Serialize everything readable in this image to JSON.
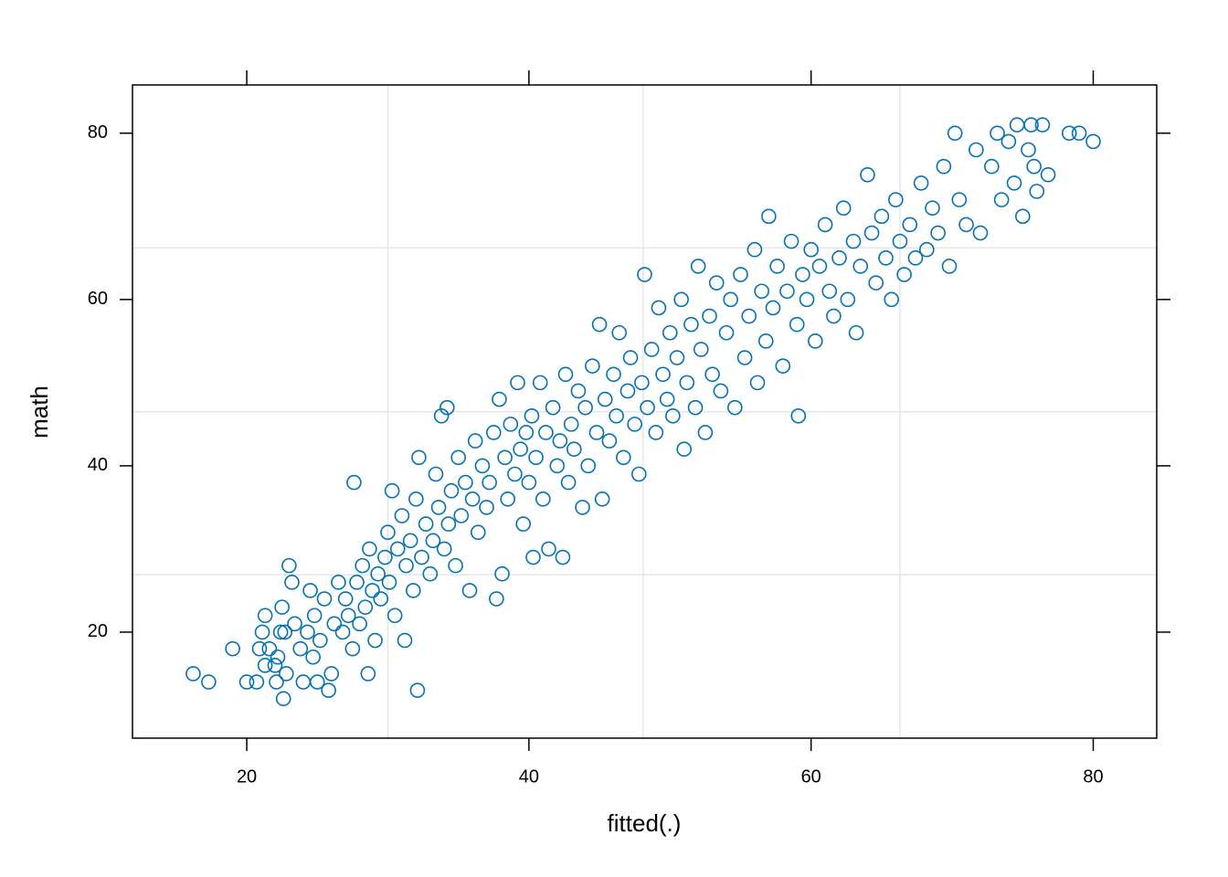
{
  "chart_data": {
    "type": "scatter",
    "x_label": "fitted(.)",
    "y_label": "math",
    "color": "#0072b2",
    "xlim": [
      11.9,
      84.5
    ],
    "ylim": [
      7.25,
      85.8
    ],
    "xticks": [
      20,
      40,
      60,
      80
    ],
    "yticks": [
      20,
      40,
      60,
      80
    ],
    "grid": true,
    "xgrid": [
      30,
      48.1,
      66.3
    ],
    "ygrid": [
      26.9,
      46.5,
      66.2
    ],
    "x": [
      16.2,
      17.3,
      19,
      20,
      20.7,
      20.9,
      21.1,
      21.3,
      21.3,
      21.6,
      22,
      22.1,
      22.2,
      22.4,
      22.5,
      22.6,
      22.7,
      22.8,
      23,
      23.2,
      23.4,
      23.8,
      24,
      24.3,
      24.5,
      24.7,
      24.8,
      25,
      25.2,
      25.5,
      25.8,
      26,
      26.2,
      26.5,
      26.8,
      27,
      27.2,
      27.5,
      27.6,
      27.8,
      28,
      28.2,
      28.4,
      28.6,
      28.7,
      28.9,
      29.1,
      29.3,
      29.5,
      29.8,
      30,
      30.1,
      30.3,
      30.5,
      30.7,
      31,
      31.2,
      31.3,
      31.6,
      31.8,
      32,
      32.1,
      32.2,
      32.4,
      32.7,
      33,
      33.2,
      33.4,
      33.6,
      33.8,
      34,
      34.2,
      34.3,
      34.5,
      34.8,
      35,
      35.2,
      35.5,
      35.8,
      36,
      36.2,
      36.4,
      36.7,
      37,
      37.2,
      37.5,
      37.7,
      37.9,
      38.1,
      38.3,
      38.5,
      38.7,
      39,
      39.2,
      39.4,
      39.6,
      39.8,
      40,
      40.2,
      40.3,
      40.5,
      40.8,
      41,
      41.2,
      41.4,
      41.7,
      42,
      42.2,
      42.4,
      42.6,
      42.8,
      43,
      43.2,
      43.5,
      43.8,
      44,
      44.2,
      44.5,
      44.8,
      45,
      45.2,
      45.4,
      45.7,
      46,
      46.2,
      46.4,
      46.7,
      47,
      47.2,
      47.5,
      47.8,
      48,
      48.2,
      48.4,
      48.7,
      49,
      49.2,
      49.5,
      49.8,
      50,
      50.2,
      50.5,
      50.8,
      51,
      51.2,
      51.5,
      51.8,
      52,
      52.2,
      52.5,
      52.8,
      53,
      53.3,
      53.6,
      54,
      54.3,
      54.6,
      55,
      55.3,
      55.6,
      56,
      56.2,
      56.5,
      56.8,
      57,
      57.3,
      57.6,
      58,
      58.3,
      58.6,
      59,
      59.1,
      59.4,
      59.7,
      60,
      60.3,
      60.6,
      61,
      61.3,
      61.6,
      62,
      62.3,
      62.6,
      63,
      63.2,
      63.5,
      64,
      64.3,
      64.6,
      65,
      65.3,
      65.7,
      66,
      66.3,
      66.6,
      67,
      67.4,
      67.8,
      68.2,
      68.6,
      69,
      69.4,
      69.8,
      70.2,
      70.5,
      71,
      71.7,
      72,
      72.8,
      73.2,
      73.5,
      74,
      74.4,
      74.6,
      75,
      75.4,
      75.6,
      75.8,
      76,
      76.4,
      76.8,
      78.3,
      79,
      80
    ],
    "values": [
      15,
      14,
      18,
      14,
      14,
      18,
      20,
      16,
      22,
      18,
      16,
      14,
      17,
      20,
      23,
      12,
      20,
      15,
      28,
      26,
      21,
      18,
      14,
      20,
      25,
      17,
      22,
      14,
      19,
      24,
      13,
      15,
      21,
      26,
      20,
      24,
      22,
      18,
      38,
      26,
      21,
      28,
      23,
      15,
      30,
      25,
      19,
      27,
      24,
      29,
      32,
      26,
      37,
      22,
      30,
      34,
      19,
      28,
      31,
      25,
      36,
      13,
      41,
      29,
      33,
      27,
      31,
      39,
      35,
      46,
      30,
      47,
      33,
      37,
      28,
      41,
      34,
      38,
      25,
      36,
      43,
      32,
      40,
      35,
      38,
      44,
      24,
      48,
      27,
      41,
      36,
      45,
      39,
      50,
      42,
      33,
      44,
      38,
      46,
      29,
      41,
      50,
      36,
      44,
      30,
      47,
      40,
      43,
      29,
      51,
      38,
      45,
      42,
      49,
      35,
      47,
      40,
      52,
      44,
      57,
      36,
      48,
      43,
      51,
      46,
      56,
      41,
      49,
      53,
      45,
      39,
      50,
      63,
      47,
      54,
      44,
      59,
      51,
      48,
      56,
      46,
      53,
      60,
      42,
      50,
      57,
      47,
      64,
      54,
      44,
      58,
      51,
      62,
      49,
      56,
      60,
      47,
      63,
      53,
      58,
      66,
      50,
      61,
      55,
      70,
      59,
      64,
      52,
      61,
      67,
      57,
      46,
      63,
      60,
      66,
      55,
      64,
      69,
      61,
      58,
      65,
      71,
      60,
      67,
      56,
      64,
      75,
      68,
      62,
      70,
      65,
      60,
      72,
      67,
      63,
      69,
      65,
      74,
      66,
      71,
      68,
      76,
      64,
      80,
      72,
      69,
      78,
      68,
      76,
      80,
      72,
      79,
      74,
      81,
      70,
      78,
      81,
      76,
      73,
      81,
      75,
      80,
      80,
      79
    ]
  }
}
